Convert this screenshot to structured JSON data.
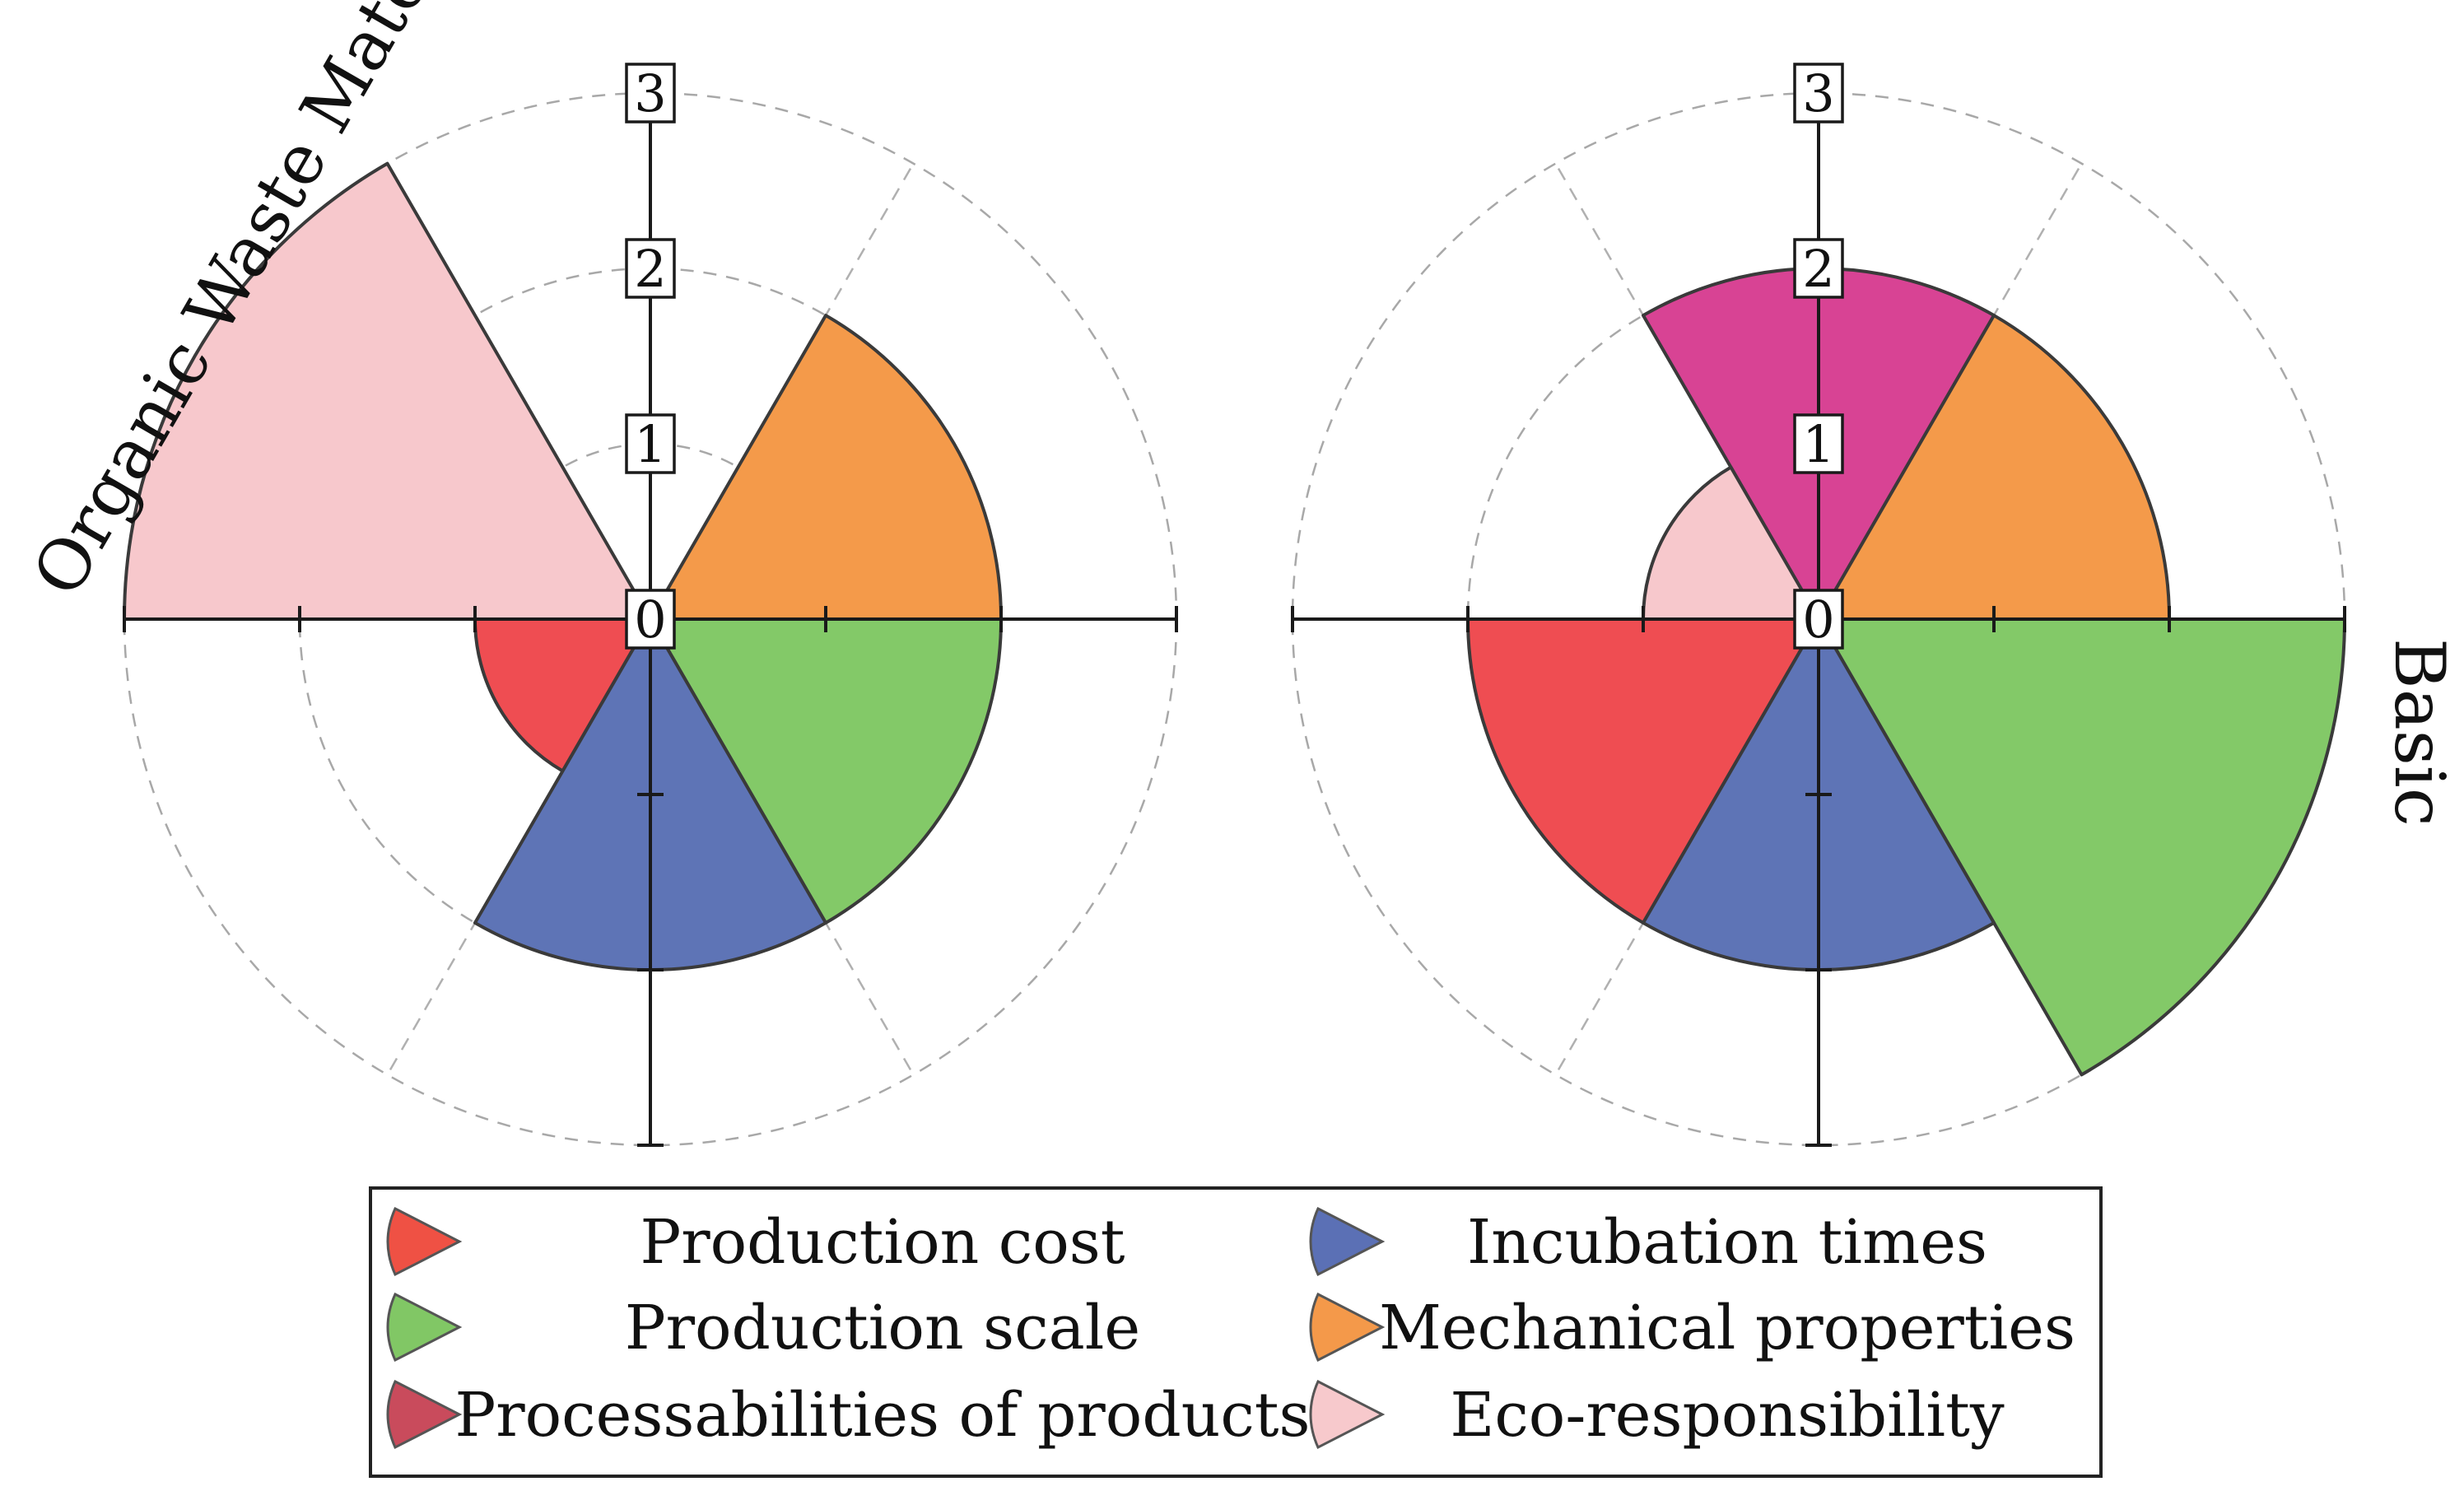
{
  "chart_data": [
    {
      "type": "polar-area",
      "title": "Organic Waste Material",
      "radial_ticks": [
        "0",
        "1",
        "2",
        "3"
      ],
      "rlim": [
        0,
        3
      ],
      "categories": [
        "Production cost",
        "Production scale",
        "Processabilities of products",
        "Incubation times",
        "Mechanical properties",
        "Eco-responsibility"
      ],
      "values": [
        1,
        2,
        0,
        2,
        2,
        3
      ]
    },
    {
      "type": "polar-area",
      "title": "Basic",
      "radial_ticks": [
        "0",
        "1",
        "2",
        "3"
      ],
      "rlim": [
        0,
        3
      ],
      "categories": [
        "Production cost",
        "Production scale",
        "Processabilities of products",
        "Incubation times",
        "Mechanical properties",
        "Eco-responsibility"
      ],
      "values": [
        2,
        3,
        2,
        2,
        2,
        1
      ]
    }
  ],
  "legend": [
    {
      "label": "Production cost",
      "color": "#ef5144"
    },
    {
      "label": "Incubation times",
      "color": "#5b70b5"
    },
    {
      "label": "Production scale",
      "color": "#81c765"
    },
    {
      "label": "Mechanical properties",
      "color": "#f4994a"
    },
    {
      "label": "Processabilities of products",
      "color": "#c94b5c"
    },
    {
      "label": "Eco-responsibility",
      "color": "#f7c9cc"
    }
  ],
  "sector_colors": {
    "Production cost": "#ef4d52",
    "Production scale": "#83c968",
    "Processabilities of products": "#d84394",
    "Incubation times": "#5e74b6",
    "Mechanical properties": "#f49a4a",
    "Eco-responsibility": "#f7c8cc"
  },
  "sector_angles_deg": {
    "Production cost": [
      180,
      240
    ],
    "Incubation times": [
      240,
      300
    ],
    "Production scale": [
      300,
      360
    ],
    "Mechanical properties": [
      0,
      60
    ],
    "Processabilities of products": [
      60,
      120
    ],
    "Eco-responsibility": [
      120,
      180
    ]
  }
}
